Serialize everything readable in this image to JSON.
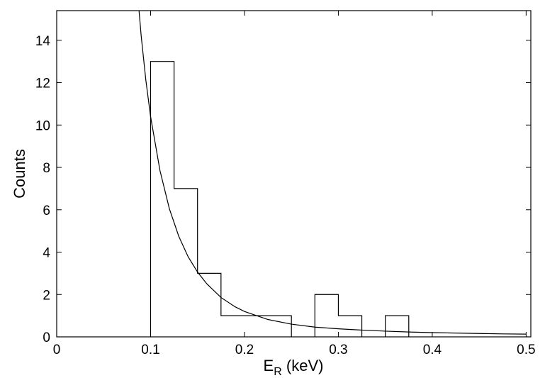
{
  "chart_data": {
    "type": "line",
    "title": "",
    "xlabel": "E",
    "xlabel_subscript": "R",
    "xlabel_suffix": " (keV)",
    "ylabel": "Counts",
    "xlim": [
      0,
      0.505
    ],
    "ylim": [
      0,
      15.4
    ],
    "x_ticks": [
      0,
      0.1,
      0.2,
      0.3,
      0.4,
      0.5
    ],
    "x_tick_labels": [
      "0",
      "0.1",
      "0.2",
      "0.3",
      "0.4",
      "0.5"
    ],
    "y_ticks": [
      0,
      2,
      4,
      6,
      8,
      10,
      12,
      14
    ],
    "y_tick_labels": [
      "0",
      "2",
      "4",
      "6",
      "8",
      "10",
      "12",
      "14"
    ],
    "grid": false,
    "legend": "none",
    "series": [
      {
        "style": "step-histogram",
        "bin_width": 0.025,
        "bins": [
          {
            "x0": 0.1,
            "x1": 0.125,
            "count": 13
          },
          {
            "x0": 0.125,
            "x1": 0.15,
            "count": 7
          },
          {
            "x0": 0.15,
            "x1": 0.175,
            "count": 3
          },
          {
            "x0": 0.175,
            "x1": 0.2,
            "count": 1
          },
          {
            "x0": 0.2,
            "x1": 0.225,
            "count": 1
          },
          {
            "x0": 0.225,
            "x1": 0.25,
            "count": 1
          },
          {
            "x0": 0.25,
            "x1": 0.275,
            "count": 0
          },
          {
            "x0": 0.275,
            "x1": 0.3,
            "count": 2
          },
          {
            "x0": 0.3,
            "x1": 0.325,
            "count": 1
          },
          {
            "x0": 0.325,
            "x1": 0.35,
            "count": 0
          },
          {
            "x0": 0.35,
            "x1": 0.375,
            "count": 1
          }
        ]
      },
      {
        "style": "curve",
        "x": [
          0.0875,
          0.09,
          0.095,
          0.1,
          0.11,
          0.12,
          0.13,
          0.14,
          0.15,
          0.16,
          0.175,
          0.19,
          0.2,
          0.225,
          0.25,
          0.275,
          0.3,
          0.325,
          0.35,
          0.375,
          0.4,
          0.425,
          0.45,
          0.475,
          0.5
        ],
        "y": [
          15.5,
          14.2,
          12.1,
          10.4,
          7.85,
          6.05,
          4.75,
          3.78,
          3.06,
          2.5,
          1.86,
          1.42,
          1.2,
          0.82,
          0.6,
          0.46,
          0.38,
          0.32,
          0.27,
          0.23,
          0.2,
          0.18,
          0.16,
          0.14,
          0.13
        ]
      }
    ]
  }
}
